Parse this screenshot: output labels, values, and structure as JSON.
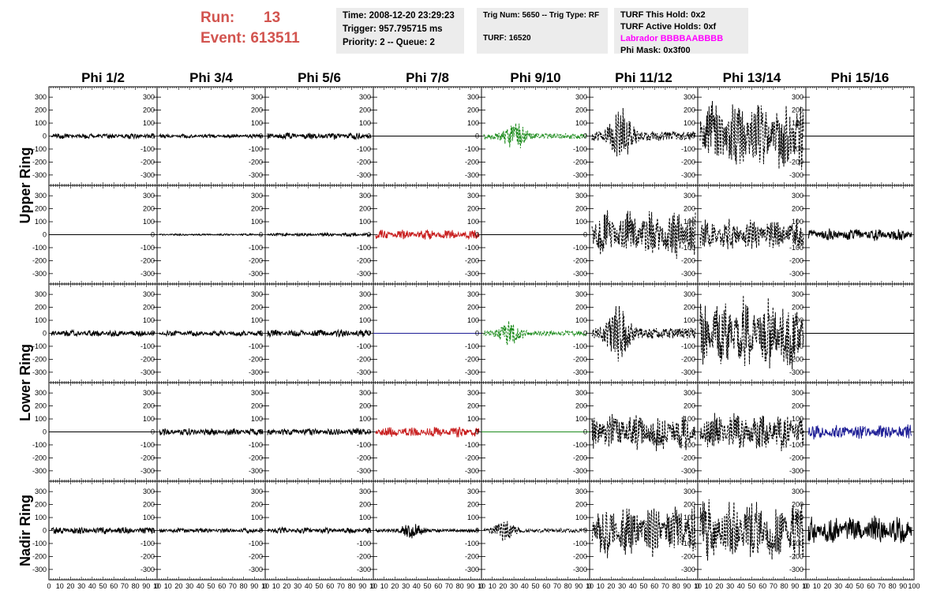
{
  "header": {
    "run_label": "Run:",
    "run_value": "13",
    "event_label": "Event:",
    "event_value": "613511"
  },
  "info_box_1": {
    "time": "Time: 2008-12-20 23:29:23",
    "trigger": "Trigger: 957.795715 ms",
    "priority": "Priority: 2 -- Queue: 2"
  },
  "info_box_2": {
    "trig": "Trig Num: 5650 -- Trig Type: RF",
    "turf": "TURF: 16520"
  },
  "info_box_3": {
    "this_hold": "TURF This Hold: 0x2",
    "active_holds": "TURF Active Holds: 0xf",
    "labrador": "Labrador BBBBAABBBB",
    "phi_mask": "Phi Mask: 0x3f00",
    "labrador_color": "#ff00ff"
  },
  "chart_data": {
    "type": "line",
    "columns": [
      "Phi 1/2",
      "Phi 3/4",
      "Phi 5/6",
      "Phi 7/8",
      "Phi 9/10",
      "Phi 11/12",
      "Phi 13/14",
      "Phi 15/16"
    ],
    "row_labels": [
      "Upper Ring",
      "Lower Ring",
      "Nadir Ring"
    ],
    "xlim": [
      0,
      100
    ],
    "ylim": [
      -380,
      380
    ],
    "y_ticks": [
      -300,
      -200,
      -100,
      0,
      100,
      200,
      300
    ],
    "y_tick_labels": [
      "-300",
      "-200",
      "-100",
      "0",
      "100",
      "200",
      "300"
    ],
    "x_tick_labels": [
      "0",
      "10",
      "20",
      "30",
      "40",
      "50",
      "60",
      "70",
      "80",
      "90",
      "10"
    ],
    "x_tick_labels_last": [
      "0",
      "10",
      "20",
      "30",
      "40",
      "50",
      "60",
      "70",
      "80",
      "90",
      "100"
    ],
    "colors": {
      "black": "#000000",
      "green": "#1e8c1e",
      "red": "#c81e1e",
      "blue": "#1e1e96"
    },
    "panels": [
      [
        {
          "amp": 22,
          "color": "black",
          "style": "solid"
        },
        {
          "amp": 16,
          "color": "black",
          "style": "solid"
        },
        {
          "amp": 28,
          "color": "black",
          "style": "solid"
        },
        {
          "amp": 0,
          "color": "black",
          "style": "solid"
        },
        {
          "amp": 90,
          "color": "green",
          "style": "dashed",
          "burst": 30
        },
        {
          "amp": 160,
          "color": "black",
          "style": "dashed",
          "burst": 28
        },
        {
          "amp": 300,
          "color": "black",
          "style": "dashed"
        },
        {
          "amp": 0,
          "color": "black",
          "style": "solid"
        }
      ],
      [
        {
          "amp": 0,
          "color": "black",
          "style": "solid"
        },
        {
          "amp": 8,
          "color": "black",
          "style": "solid"
        },
        {
          "amp": 14,
          "color": "black",
          "style": "solid"
        },
        {
          "amp": 40,
          "color": "red",
          "style": "solid"
        },
        {
          "amp": 0,
          "color": "black",
          "style": "solid"
        },
        {
          "amp": 200,
          "color": "black",
          "style": "dashed"
        },
        {
          "amp": 130,
          "color": "black",
          "style": "dashed"
        },
        {
          "amp": 50,
          "color": "black",
          "style": "solid"
        }
      ],
      [
        {
          "amp": 28,
          "color": "black",
          "style": "solid"
        },
        {
          "amp": 25,
          "color": "black",
          "style": "solid"
        },
        {
          "amp": 32,
          "color": "black",
          "style": "solid"
        },
        {
          "amp": 0,
          "color": "blue",
          "style": "solid"
        },
        {
          "amp": 80,
          "color": "green",
          "style": "dashed",
          "burst": 25
        },
        {
          "amp": 180,
          "color": "black",
          "style": "dashed",
          "burst": 25
        },
        {
          "amp": 300,
          "color": "black",
          "style": "dashed"
        },
        {
          "amp": 0,
          "color": "black",
          "style": "solid"
        }
      ],
      [
        {
          "amp": 0,
          "color": "black",
          "style": "solid"
        },
        {
          "amp": 30,
          "color": "black",
          "style": "solid"
        },
        {
          "amp": 30,
          "color": "black",
          "style": "solid"
        },
        {
          "amp": 45,
          "color": "red",
          "style": "solid"
        },
        {
          "amp": 0,
          "color": "green",
          "style": "solid"
        },
        {
          "amp": 160,
          "color": "black",
          "style": "dashed"
        },
        {
          "amp": 170,
          "color": "black",
          "style": "dashed"
        },
        {
          "amp": 60,
          "color": "blue",
          "style": "solid"
        }
      ],
      [
        {
          "amp": 30,
          "color": "black",
          "style": "solid"
        },
        {
          "amp": 20,
          "color": "black",
          "style": "solid"
        },
        {
          "amp": 25,
          "color": "black",
          "style": "solid"
        },
        {
          "amp": 45,
          "color": "black",
          "style": "solid",
          "burst": 35
        },
        {
          "amp": 60,
          "color": "black",
          "style": "dashed",
          "burst": 20
        },
        {
          "amp": 220,
          "color": "black",
          "style": "dashed"
        },
        {
          "amp": 260,
          "color": "black",
          "style": "dashed"
        },
        {
          "amp": 120,
          "color": "black",
          "style": "solid"
        }
      ]
    ]
  }
}
